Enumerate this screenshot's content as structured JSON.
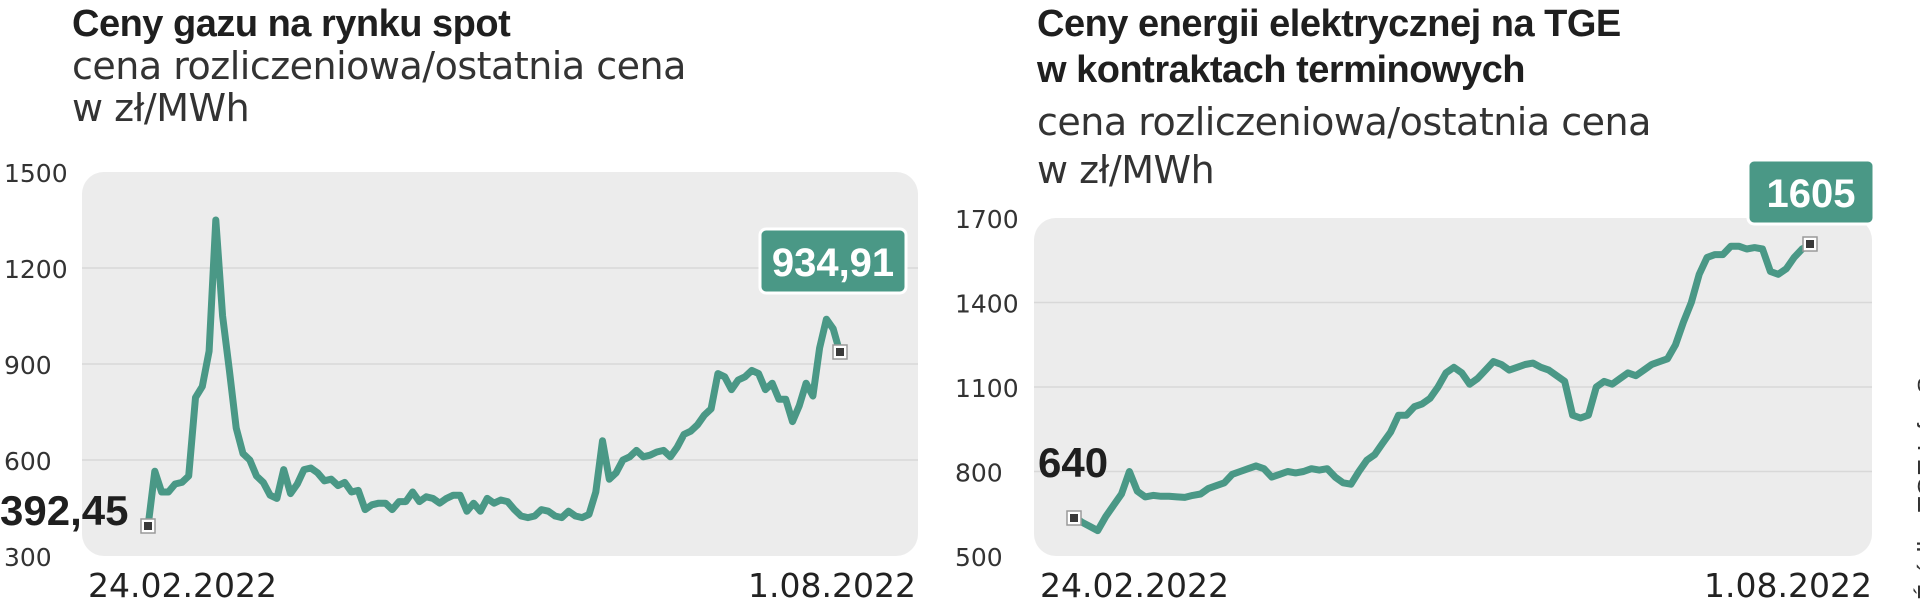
{
  "charts": [
    {
      "title": "Ceny gazu na rynku spot",
      "subtitle_lines": [
        "cena rozliczeniowa/ostatnia cena",
        "w zł/MWh"
      ]
    },
    {
      "title_lines": [
        "Ceny energii elektrycznej na TGE",
        "w kontraktach terminowych"
      ],
      "subtitle_lines": [
        "cena rozliczeniowa/ostatnia cena",
        "w zł/MWh"
      ]
    }
  ],
  "source": {
    "text": "Źródło: TGE    Info: S"
  },
  "colors": {
    "line": "#4a9886",
    "badge": "#4a9886",
    "plot_bg": "#ececec",
    "grid": "#d8d8d8",
    "text": "#222222"
  },
  "chart_data": [
    {
      "type": "line",
      "title": "Ceny gazu na rynku spot",
      "ylabel": "w zł/MWh",
      "ylim": [
        300,
        1500
      ],
      "yticks": [
        300,
        600,
        900,
        1200,
        1500
      ],
      "ytick_labels": [
        "300",
        "600",
        "900",
        "1200",
        "1500"
      ],
      "x_start_label": "24.02.2022",
      "x_end_label": "1.08.2022",
      "start_label": "392,45",
      "end_label": "934,91",
      "values": [
        392,
        565,
        500,
        500,
        525,
        530,
        550,
        795,
        830,
        940,
        1350,
        1050,
        880,
        700,
        620,
        600,
        550,
        530,
        490,
        480,
        570,
        495,
        525,
        570,
        575,
        560,
        535,
        540,
        520,
        530,
        500,
        505,
        445,
        460,
        465,
        465,
        445,
        470,
        470,
        500,
        470,
        485,
        480,
        465,
        480,
        490,
        490,
        440,
        465,
        440,
        480,
        465,
        475,
        470,
        445,
        425,
        420,
        425,
        445,
        440,
        425,
        420,
        440,
        425,
        420,
        430,
        500,
        660,
        540,
        560,
        600,
        610,
        630,
        610,
        615,
        625,
        630,
        610,
        640,
        680,
        690,
        710,
        740,
        760,
        870,
        860,
        820,
        850,
        860,
        880,
        870,
        820,
        840,
        790,
        790,
        720,
        770,
        840,
        800,
        950,
        1040,
        1010,
        935
      ]
    },
    {
      "type": "line",
      "title": "Ceny energii elektrycznej na TGE w kontraktach terminowych",
      "ylabel": "w zł/MWh",
      "ylim": [
        500,
        1700
      ],
      "yticks": [
        500,
        800,
        1100,
        1400,
        1700
      ],
      "ytick_labels": [
        "500",
        "800",
        "1100",
        "1400",
        "1700"
      ],
      "x_start_label": "24.02.2022",
      "x_end_label": "1.08.2022",
      "start_label": "640",
      "end_label": "1605",
      "values": [
        640,
        620,
        605,
        590,
        640,
        680,
        720,
        800,
        730,
        710,
        715,
        712,
        712,
        710,
        708,
        715,
        720,
        740,
        750,
        760,
        790,
        800,
        810,
        820,
        810,
        780,
        790,
        800,
        795,
        800,
        810,
        805,
        810,
        780,
        760,
        755,
        800,
        840,
        860,
        900,
        940,
        1000,
        1000,
        1030,
        1040,
        1060,
        1100,
        1150,
        1170,
        1150,
        1110,
        1130,
        1160,
        1190,
        1180,
        1160,
        1170,
        1180,
        1185,
        1170,
        1160,
        1140,
        1120,
        1000,
        990,
        1000,
        1100,
        1120,
        1110,
        1130,
        1150,
        1140,
        1160,
        1180,
        1190,
        1200,
        1250,
        1330,
        1400,
        1500,
        1560,
        1570,
        1570,
        1600,
        1600,
        1590,
        1595,
        1590,
        1510,
        1500,
        1520,
        1560,
        1590,
        1605
      ]
    }
  ]
}
